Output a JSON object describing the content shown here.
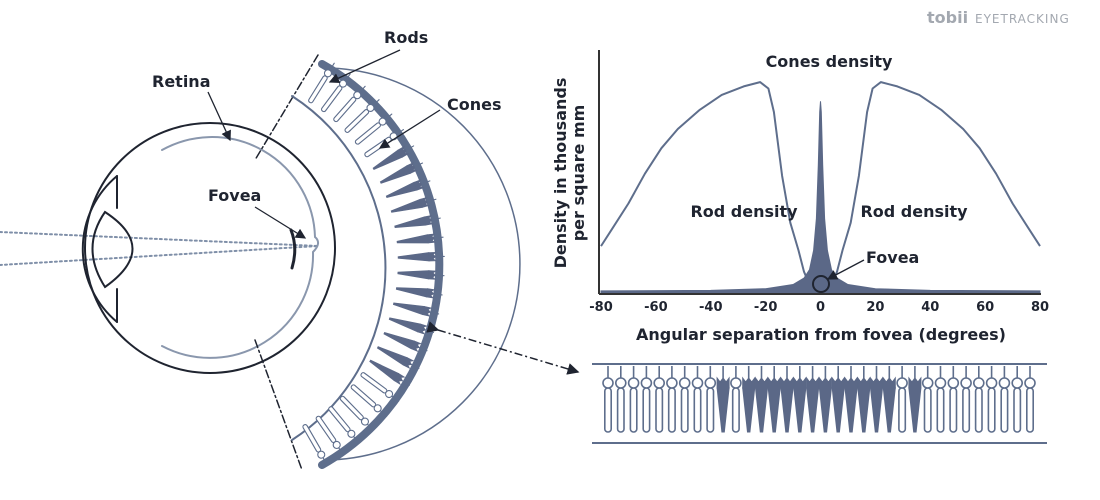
{
  "brand": {
    "logo_mark": "tobii",
    "logo_text": "EYETRACKING"
  },
  "eye_diagram": {
    "labels": {
      "rods": "Rods",
      "retina": "Retina",
      "cones": "Cones",
      "fovea": "Fovea"
    }
  },
  "chart_data": {
    "type": "area",
    "title": "Cones density",
    "xlabel": "Angular separation from fovea (degrees)",
    "ylabel_line1": "Density in thousands",
    "ylabel_line2": "per square mm",
    "xlim": [
      -80,
      80
    ],
    "x_ticks": [
      "-80",
      "-60",
      "-40",
      "-20",
      "0",
      "20",
      "40",
      "60",
      "80"
    ],
    "annotations": {
      "rod_left": "Rod density",
      "rod_right": "Rod density",
      "fovea": "Fovea"
    },
    "grid": false,
    "series": [
      {
        "label": "rods",
        "points": [
          [
            -80,
            0.22
          ],
          [
            -76,
            0.3
          ],
          [
            -70,
            0.42
          ],
          [
            -64,
            0.56
          ],
          [
            -58,
            0.68
          ],
          [
            -52,
            0.77
          ],
          [
            -44,
            0.86
          ],
          [
            -36,
            0.93
          ],
          [
            -28,
            0.97
          ],
          [
            -22,
            0.99
          ],
          [
            -19,
            0.96
          ],
          [
            -17,
            0.85
          ],
          [
            -14,
            0.55
          ],
          [
            -11,
            0.33
          ],
          [
            -8,
            0.2
          ],
          [
            -6,
            0.1
          ],
          [
            -4,
            0.04
          ],
          [
            -2,
            0.01
          ],
          [
            0,
            0
          ],
          [
            2,
            0.01
          ],
          [
            4,
            0.04
          ],
          [
            6,
            0.1
          ],
          [
            8,
            0.2
          ],
          [
            11,
            0.33
          ],
          [
            14,
            0.55
          ],
          [
            17,
            0.85
          ],
          [
            19,
            0.96
          ],
          [
            22,
            0.99
          ],
          [
            28,
            0.97
          ],
          [
            36,
            0.93
          ],
          [
            44,
            0.86
          ],
          [
            52,
            0.77
          ],
          [
            58,
            0.68
          ],
          [
            64,
            0.56
          ],
          [
            70,
            0.42
          ],
          [
            76,
            0.3
          ],
          [
            80,
            0.22
          ]
        ]
      },
      {
        "label": "cones",
        "points": [
          [
            -80,
            0.01
          ],
          [
            -40,
            0.012
          ],
          [
            -20,
            0.02
          ],
          [
            -10,
            0.04
          ],
          [
            -6,
            0.07
          ],
          [
            -4,
            0.11
          ],
          [
            -2.5,
            0.2
          ],
          [
            -1.5,
            0.35
          ],
          [
            -0.8,
            0.6
          ],
          [
            -0.3,
            0.85
          ],
          [
            0,
            0.9
          ],
          [
            0.3,
            0.85
          ],
          [
            0.8,
            0.6
          ],
          [
            1.5,
            0.35
          ],
          [
            2.5,
            0.2
          ],
          [
            4,
            0.11
          ],
          [
            6,
            0.07
          ],
          [
            10,
            0.04
          ],
          [
            20,
            0.02
          ],
          [
            40,
            0.012
          ],
          [
            80,
            0.01
          ]
        ]
      }
    ],
    "colors": {
      "rod_line": "#5e6e8c",
      "cone_fill": "#5b6887",
      "axis": "#333333"
    }
  },
  "photoreceptor_strip": {
    "pattern": "RRRRRRRRRCRCCCCCCCCCCCCRCRRRRRRRRR"
  }
}
